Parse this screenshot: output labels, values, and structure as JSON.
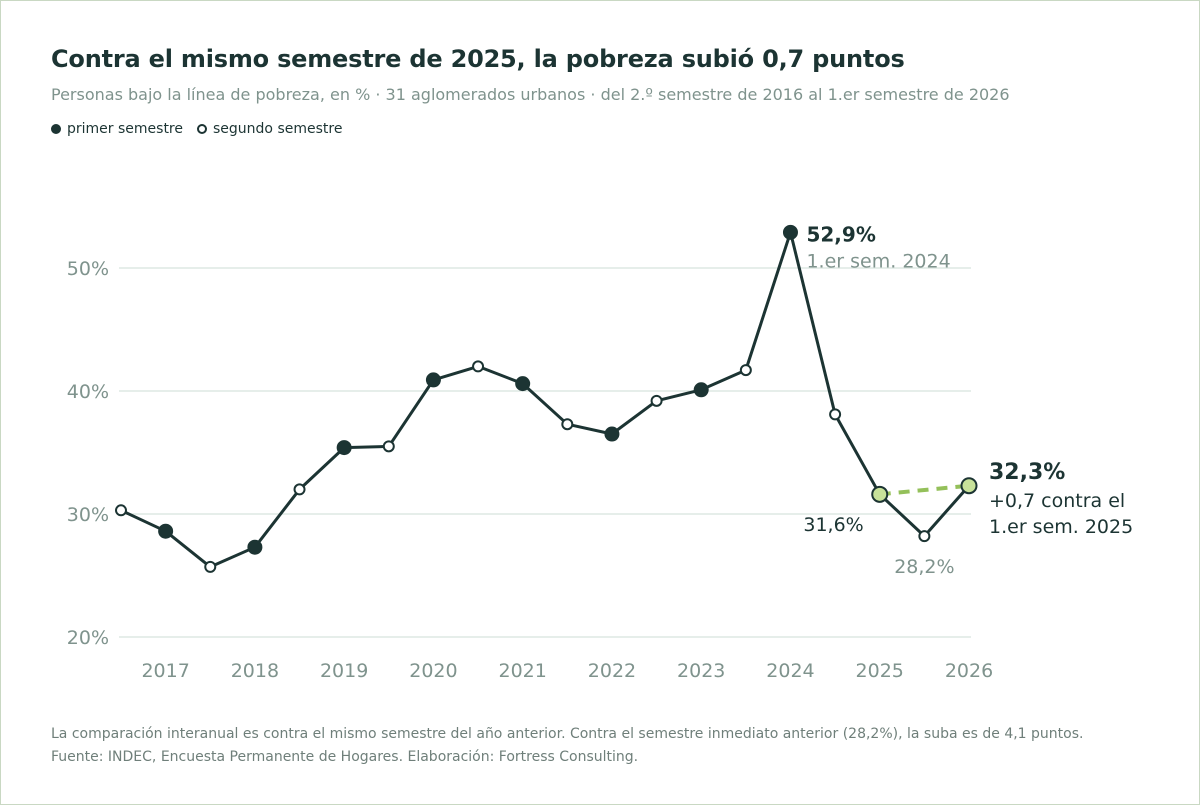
{
  "title": "Contra el mismo semestre de 2025, la pobreza subió 0,7 puntos",
  "subtitle": "Personas bajo la línea de pobreza, en % · 31 aglomerados urbanos · del 2.º semestre de 2016 al 1.er semestre de 2026",
  "legend": {
    "first": "primer semestre",
    "second": "segundo semestre"
  },
  "footnote": {
    "line1": "La comparación interanual es contra el mismo semestre del año anterior. Contra el semestre inmediato anterior (28,2%), la suba es de 4,1 puntos.",
    "line2": "Fuente: INDEC, Encuesta Permanente de Hogares. Elaboración: Fortress Consulting."
  },
  "colors": {
    "line": "#1c3433",
    "grid": "#dde8e3",
    "axis_text": "#7f938d",
    "highlight_fill": "#c8e29a",
    "highlight_dash": "#94c05a"
  },
  "chart_data": {
    "type": "line",
    "ylim": [
      20,
      55
    ],
    "yticks": [
      20,
      30,
      40,
      50
    ],
    "ytick_labels": [
      "20%",
      "30%",
      "40%",
      "50%"
    ],
    "xticks": [
      2017,
      2018,
      2019,
      2020,
      2021,
      2022,
      2023,
      2024,
      2025,
      2026
    ],
    "xtick_labels": [
      "2017",
      "2018",
      "2019",
      "2020",
      "2021",
      "2022",
      "2023",
      "2024",
      "2025",
      "2026"
    ],
    "grid": true,
    "legend_placement": "top-left",
    "points": [
      {
        "period": "2.º sem. 2016",
        "x": 2016.5,
        "value": 30.3,
        "semester": 2
      },
      {
        "period": "1.er sem. 2017",
        "x": 2017.0,
        "value": 28.6,
        "semester": 1
      },
      {
        "period": "2.º sem. 2017",
        "x": 2017.5,
        "value": 25.7,
        "semester": 2
      },
      {
        "period": "1.er sem. 2018",
        "x": 2018.0,
        "value": 27.3,
        "semester": 1
      },
      {
        "period": "2.º sem. 2018",
        "x": 2018.5,
        "value": 32.0,
        "semester": 2
      },
      {
        "period": "1.er sem. 2019",
        "x": 2019.0,
        "value": 35.4,
        "semester": 1
      },
      {
        "period": "2.º sem. 2019",
        "x": 2019.5,
        "value": 35.5,
        "semester": 2
      },
      {
        "period": "1.er sem. 2020",
        "x": 2020.0,
        "value": 40.9,
        "semester": 1
      },
      {
        "period": "2.º sem. 2020",
        "x": 2020.5,
        "value": 42.0,
        "semester": 2
      },
      {
        "period": "1.er sem. 2021",
        "x": 2021.0,
        "value": 40.6,
        "semester": 1
      },
      {
        "period": "2.º sem. 2021",
        "x": 2021.5,
        "value": 37.3,
        "semester": 2
      },
      {
        "period": "1.er sem. 2022",
        "x": 2022.0,
        "value": 36.5,
        "semester": 1
      },
      {
        "period": "2.º sem. 2022",
        "x": 2022.5,
        "value": 39.2,
        "semester": 2
      },
      {
        "period": "1.er sem. 2023",
        "x": 2023.0,
        "value": 40.1,
        "semester": 1
      },
      {
        "period": "2.º sem. 2023",
        "x": 2023.5,
        "value": 41.7,
        "semester": 2
      },
      {
        "period": "1.er sem. 2024",
        "x": 2024.0,
        "value": 52.9,
        "semester": 1
      },
      {
        "period": "2.º sem. 2024",
        "x": 2024.5,
        "value": 38.1,
        "semester": 2
      },
      {
        "period": "1.er sem. 2025",
        "x": 2025.0,
        "value": 31.6,
        "semester": 1,
        "highlight": true
      },
      {
        "period": "2.º sem. 2025",
        "x": 2025.5,
        "value": 28.2,
        "semester": 2
      },
      {
        "period": "1.er sem. 2026",
        "x": 2026.0,
        "value": 32.3,
        "semester": 1,
        "highlight": true
      }
    ],
    "comparison": {
      "from": 2025.0,
      "to": 2026.0
    },
    "annotations": {
      "peak_value": "52,9%",
      "peak_label": "1.er sem. 2024",
      "last_value": "32,3%",
      "last_note_1": "+0,7 contra el",
      "last_note_2": "1.er sem. 2025",
      "prev_year_value": "31,6%",
      "prev_sem_value": "28,2%"
    }
  }
}
